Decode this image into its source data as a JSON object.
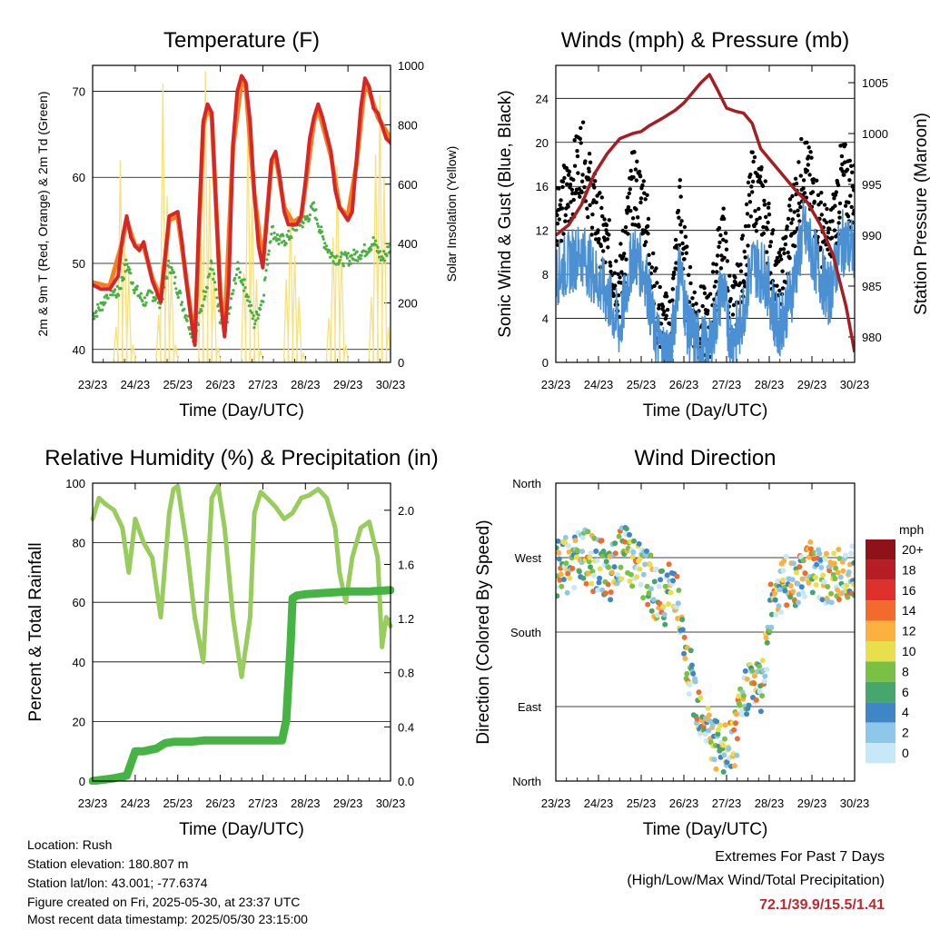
{
  "footer": {
    "location": "Location: Rush",
    "elevation": "Station elevation: 180.807 m",
    "latlon": "Station lat/lon: 43.001; -77.6374",
    "created": "Figure created on Fri, 2025-05-30, at 23:37 UTC",
    "recent": "Most recent data timestamp: 2025/05/30 23:15:00",
    "extremes_title": "Extremes For Past 7 Days",
    "extremes_sub": "(High/Low/Max Wind/Total Precipitation)",
    "extremes_values": "72.1/39.9/15.5/1.41"
  },
  "colors": {
    "temp2m": "#d62728",
    "temp9m": "#f57f20",
    "dewpoint": "#4bb043",
    "solar": "#f9e07a",
    "sonic_wind": "#4a90d2",
    "gust": "#000000",
    "pressure": "#a41e22",
    "rh": "#98cc5c",
    "precip": "#46b443"
  },
  "chart_data": [
    {
      "id": "temperature",
      "type": "line",
      "title": "Temperature (F)",
      "xlabel": "Time (Day/UTC)",
      "ylabel": "2m & 9m T (Red, Orange) & 2m Td (Green)",
      "ylabel_right": "Solar Insolation (Yellow)",
      "x_ticks": [
        "23/23",
        "24/23",
        "25/23",
        "26/23",
        "27/23",
        "28/23",
        "29/23",
        "30/23"
      ],
      "ylim": [
        38.5,
        73
      ],
      "y_ticks": [
        40,
        50,
        60,
        70
      ],
      "ylim_right": [
        0,
        1000
      ],
      "y_ticks_right": [
        0,
        200,
        400,
        600,
        800,
        1000
      ],
      "grid": true,
      "series": [
        {
          "name": "2m T",
          "x": [
            0,
            0.2,
            0.4,
            0.6,
            0.7,
            0.8,
            0.9,
            1.0,
            1.1,
            1.2,
            1.4,
            1.6,
            1.8,
            2.0,
            2.1,
            2.2,
            2.3,
            2.4,
            2.5,
            2.6,
            2.7,
            2.8,
            3.0,
            3.1,
            3.2,
            3.3,
            3.4,
            3.5,
            3.6,
            3.7,
            3.8,
            3.9,
            4.0,
            4.1,
            4.2,
            4.3,
            4.4,
            4.5,
            4.6,
            4.7,
            4.8,
            4.9,
            5.0,
            5.1,
            5.2,
            5.3,
            5.4,
            5.6,
            5.7,
            5.8,
            6.0,
            6.1,
            6.2,
            6.3,
            6.4,
            6.5,
            6.6,
            6.7,
            6.8,
            6.9,
            7.0
          ],
          "values": [
            47.5,
            47.0,
            47.0,
            48.5,
            53.0,
            55.5,
            53.0,
            52.0,
            51.5,
            52.5,
            48.0,
            45.5,
            55.5,
            56.0,
            52.5,
            48.0,
            44.0,
            40.5,
            55.0,
            66.5,
            68.5,
            67.5,
            46.0,
            41.5,
            47.5,
            64.0,
            70.0,
            71.8,
            71.0,
            66.5,
            58.0,
            52.0,
            49.5,
            55.5,
            62.0,
            63.0,
            60.0,
            56.0,
            54.5,
            54.5,
            54.5,
            55.5,
            59.5,
            64.5,
            67.0,
            68.5,
            67.0,
            63.0,
            58.5,
            56.5,
            55.0,
            56.0,
            62.0,
            68.0,
            71.5,
            70.5,
            68.0,
            67.5,
            66.0,
            64.5,
            64.0
          ]
        },
        {
          "name": "9m T",
          "x": [
            0,
            0.4,
            0.7,
            0.8,
            1.0,
            1.2,
            1.4,
            1.6,
            1.8,
            2.0,
            2.3,
            2.4,
            2.6,
            2.7,
            2.8,
            3.0,
            3.1,
            3.3,
            3.5,
            3.6,
            3.8,
            4.0,
            4.2,
            4.3,
            4.5,
            4.7,
            4.9,
            5.0,
            5.2,
            5.3,
            5.6,
            5.8,
            6.0,
            6.2,
            6.4,
            6.5,
            6.7,
            7.0
          ],
          "values": [
            47.8,
            47.3,
            52.5,
            55.0,
            52.0,
            52.0,
            48.3,
            46.0,
            55.0,
            55.5,
            44.5,
            41.0,
            66.0,
            68.0,
            67.0,
            46.5,
            42.0,
            63.5,
            71.3,
            70.5,
            58.0,
            50.0,
            61.5,
            62.5,
            56.5,
            54.8,
            55.3,
            59.0,
            66.5,
            68.0,
            62.5,
            56.5,
            55.5,
            61.5,
            71.0,
            70.0,
            67.0,
            64.5
          ]
        },
        {
          "name": "2m Td",
          "x": [
            0,
            0.2,
            0.4,
            0.6,
            0.8,
            1.0,
            1.2,
            1.4,
            1.6,
            1.8,
            2.0,
            2.2,
            2.4,
            2.6,
            2.8,
            3.0,
            3.2,
            3.4,
            3.6,
            3.8,
            4.0,
            4.2,
            4.4,
            4.6,
            4.8,
            5.0,
            5.2,
            5.4,
            5.6,
            5.8,
            6.0,
            6.2,
            6.4,
            6.6,
            6.8,
            7.0
          ],
          "values": [
            44.0,
            45.0,
            47.0,
            46.5,
            50.0,
            47.0,
            45.5,
            46.5,
            45.5,
            50.0,
            47.0,
            44.0,
            41.0,
            46.0,
            50.0,
            43.0,
            44.0,
            49.5,
            47.0,
            43.0,
            46.0,
            54.0,
            52.5,
            53.0,
            54.5,
            55.0,
            56.5,
            53.0,
            51.0,
            50.5,
            50.5,
            51.0,
            51.5,
            52.5,
            50.5,
            52.0
          ]
        },
        {
          "name": "Solar Insolation",
          "axis": "right",
          "x": [
            0.55,
            0.65,
            0.75,
            0.85,
            0.95,
            1.55,
            1.65,
            1.75,
            1.85,
            1.95,
            2.55,
            2.65,
            2.75,
            2.85,
            2.95,
            3.55,
            3.65,
            3.75,
            3.85,
            3.95,
            4.55,
            4.65,
            4.75,
            4.85,
            4.95,
            5.55,
            5.65,
            5.75,
            5.85,
            5.95,
            6.55,
            6.65,
            6.75,
            6.85,
            6.95
          ],
          "values": [
            120,
            680,
            450,
            300,
            60,
            160,
            940,
            560,
            300,
            60,
            400,
            980,
            620,
            320,
            50,
            300,
            820,
            560,
            280,
            40,
            280,
            520,
            360,
            220,
            30,
            150,
            420,
            660,
            380,
            60,
            220,
            700,
            900,
            620,
            120
          ]
        }
      ]
    },
    {
      "id": "winds",
      "type": "scatter",
      "title": "Winds (mph) & Pressure (mb)",
      "xlabel": "Time (Day/UTC)",
      "ylabel": "Sonic Wind & Gust (Blue, Black)",
      "ylabel_right": "Station Pressure (Maroon)",
      "x_ticks": [
        "23/23",
        "24/23",
        "25/23",
        "26/23",
        "27/23",
        "28/23",
        "29/23",
        "30/23"
      ],
      "ylim": [
        0,
        27
      ],
      "y_ticks": [
        0,
        4,
        8,
        12,
        16,
        20,
        24
      ],
      "ylim_right": [
        977.5,
        1006.7
      ],
      "y_ticks_right": [
        980,
        985,
        990,
        995,
        1000,
        1005
      ],
      "grid": true,
      "series": [
        {
          "name": "Sonic Wind",
          "x": [
            0,
            0.3,
            0.6,
            0.9,
            1.2,
            1.5,
            1.8,
            2.1,
            2.3,
            2.5,
            2.7,
            2.9,
            3.1,
            3.3,
            3.6,
            3.9,
            4.1,
            4.3,
            4.6,
            4.9,
            5.2,
            5.5,
            5.8,
            6.1,
            6.4,
            6.7,
            7.0
          ],
          "values": [
            8,
            9,
            10,
            8,
            6,
            3,
            10,
            8,
            3,
            1,
            1,
            9,
            3,
            2,
            1,
            7,
            2,
            3,
            9,
            8,
            3,
            6,
            12,
            9,
            6,
            11,
            10
          ]
        },
        {
          "name": "Gust",
          "x": [
            0,
            0.3,
            0.6,
            0.9,
            1.2,
            1.5,
            1.8,
            2.1,
            2.3,
            2.5,
            2.7,
            2.9,
            3.1,
            3.3,
            3.6,
            3.9,
            4.1,
            4.3,
            4.6,
            4.9,
            5.2,
            5.5,
            5.8,
            6.1,
            6.4,
            6.7,
            7.0
          ],
          "values": [
            14,
            15,
            19,
            14,
            10,
            7,
            16,
            14,
            6,
            3,
            3,
            14,
            6,
            4,
            3,
            12,
            4,
            6,
            16,
            14,
            6,
            12,
            18,
            14,
            10,
            17,
            15
          ]
        },
        {
          "name": "Station Pressure",
          "axis": "right",
          "x": [
            0,
            0.3,
            0.6,
            0.9,
            1.2,
            1.5,
            1.8,
            2.0,
            2.2,
            2.5,
            2.8,
            3.0,
            3.2,
            3.4,
            3.6,
            3.8,
            4.0,
            4.2,
            4.4,
            4.6,
            4.8,
            5.0,
            5.3,
            5.6,
            5.9,
            6.2,
            6.5,
            6.8,
            7.0
          ],
          "values": [
            990,
            991,
            993,
            996,
            998,
            999.5,
            1000,
            1000.2,
            1000.8,
            1001.5,
            1002.3,
            1003,
            1004,
            1005,
            1005.8,
            1004.2,
            1002.5,
            1002.2,
            1002,
            1001,
            998.5,
            997.5,
            996,
            994.5,
            993.2,
            991,
            988,
            983,
            978.5
          ]
        }
      ]
    },
    {
      "id": "humidity",
      "type": "line",
      "title": "Relative Humidity (%) & Precipitation (in)",
      "xlabel": "Time (Day/UTC)",
      "ylabel": "Percent & Total Rainfall",
      "x_ticks": [
        "23/23",
        "24/23",
        "25/23",
        "26/23",
        "27/23",
        "28/23",
        "29/23",
        "30/23"
      ],
      "ylim": [
        0,
        100
      ],
      "y_ticks": [
        0,
        20,
        40,
        60,
        80,
        100
      ],
      "ylim_right": [
        0,
        2.2
      ],
      "y_ticks_right": [
        "0.0",
        "0.4",
        "0.8",
        "1.2",
        "1.6",
        "2.0"
      ],
      "grid": true,
      "series": [
        {
          "name": "Relative Humidity",
          "x": [
            0,
            0.15,
            0.3,
            0.5,
            0.7,
            0.85,
            1.0,
            1.2,
            1.4,
            1.6,
            1.8,
            1.9,
            2.0,
            2.2,
            2.4,
            2.6,
            2.8,
            2.95,
            3.1,
            3.3,
            3.5,
            3.7,
            3.8,
            3.95,
            4.1,
            4.3,
            4.5,
            4.7,
            4.9,
            5.1,
            5.3,
            5.5,
            5.7,
            5.8,
            5.95,
            6.1,
            6.3,
            6.5,
            6.7,
            6.8,
            6.9,
            7.0
          ],
          "values": [
            88,
            95,
            93,
            91,
            85,
            70,
            88,
            80,
            75,
            55,
            90,
            98,
            99,
            80,
            55,
            40,
            95,
            99,
            85,
            55,
            35,
            55,
            90,
            97,
            95,
            92,
            88,
            90,
            95,
            96,
            98,
            95,
            85,
            70,
            60,
            75,
            85,
            87,
            75,
            45,
            55,
            52
          ]
        },
        {
          "name": "Total Precipitation",
          "axis": "right",
          "x": [
            0,
            0.5,
            0.8,
            0.9,
            1.0,
            1.2,
            1.5,
            1.7,
            1.9,
            2.3,
            2.6,
            3.0,
            3.5,
            4.0,
            4.45,
            4.55,
            4.65,
            4.7,
            4.8,
            5.0,
            5.5,
            6.0,
            6.5,
            7.0
          ],
          "values": [
            0.0,
            0.02,
            0.04,
            0.13,
            0.22,
            0.22,
            0.24,
            0.28,
            0.29,
            0.29,
            0.3,
            0.3,
            0.3,
            0.3,
            0.3,
            0.45,
            1.0,
            1.35,
            1.37,
            1.38,
            1.39,
            1.4,
            1.4,
            1.41
          ]
        }
      ]
    },
    {
      "id": "direction",
      "type": "scatter",
      "title": "Wind Direction",
      "xlabel": "Time (Day/UTC)",
      "ylabel": "Direction (Colored By Speed)",
      "x_ticks": [
        "23/23",
        "24/23",
        "25/23",
        "26/23",
        "27/23",
        "28/23",
        "29/23",
        "30/23"
      ],
      "y_ticks": [
        "North",
        "East",
        "South",
        "West",
        "North"
      ],
      "ylim": [
        0,
        360
      ],
      "grid": true,
      "colorbar": {
        "title": "mph",
        "labels": [
          "0",
          "2",
          "4",
          "6",
          "8",
          "10",
          "12",
          "14",
          "16",
          "18",
          "20+"
        ],
        "colors": [
          "#c6e8f7",
          "#8fc7ea",
          "#3f86c7",
          "#46a66b",
          "#7ac143",
          "#e7e04c",
          "#fbb040",
          "#f26b2d",
          "#e0302b",
          "#b71d24",
          "#8f1218"
        ]
      },
      "series": [
        {
          "name": "direction",
          "x": [
            0.1,
            0.4,
            0.7,
            1.0,
            1.3,
            1.6,
            1.9,
            2.2,
            2.5,
            2.8,
            3.0,
            3.3,
            3.6,
            3.9,
            4.2,
            4.5,
            4.8,
            5.1,
            5.5,
            5.9,
            6.2,
            6.5,
            6.8
          ],
          "values": [
            255,
            265,
            270,
            260,
            250,
            280,
            260,
            240,
            220,
            240,
            150,
            100,
            60,
            30,
            50,
            120,
            110,
            230,
            240,
            260,
            250,
            245,
            250
          ]
        }
      ]
    }
  ]
}
